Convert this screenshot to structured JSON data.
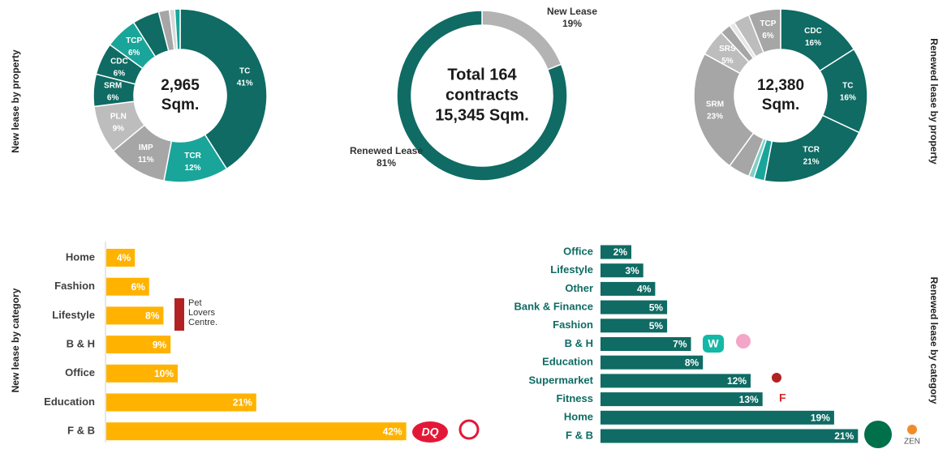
{
  "chart_data": [
    {
      "type": "pie",
      "axis_label": "New lease by property",
      "center_text": [
        "2,965",
        "Sqm."
      ],
      "categories": [
        "TC",
        "TCR",
        "IMP",
        "PLN",
        "SRM",
        "CDC",
        "TCP",
        null,
        null,
        null,
        null
      ],
      "values": [
        41,
        12,
        11,
        9,
        6,
        6,
        6,
        5,
        2,
        1,
        1
      ],
      "value_labels": [
        "41%",
        "12%",
        "11%",
        "9%",
        "6%",
        "6%",
        "6%",
        null,
        null,
        null,
        null
      ],
      "colors": [
        "#0f6b63",
        "#1aa59a",
        "#a6a6a6",
        "#bdbdbd",
        "#0f6b63",
        "#0f6b63",
        "#1aa59a",
        "#0f6b63",
        "#a6a6a6",
        "#d9d9d9",
        "#1aa59a"
      ]
    },
    {
      "type": "pie",
      "center_text": [
        "Total 164",
        "contracts",
        "15,345 Sqm."
      ],
      "categories": [
        "New Lease",
        "Renewed Lease"
      ],
      "values": [
        19,
        81
      ],
      "value_labels": [
        "19%",
        "81%"
      ],
      "colors": [
        "#b3b3b3",
        "#0f6b63"
      ]
    },
    {
      "type": "pie",
      "axis_label": "Renewed lease by property",
      "center_text": [
        "12,380",
        "Sqm."
      ],
      "categories": [
        "CDC",
        "TC",
        "TCR",
        null,
        null,
        null,
        "SRM",
        "SRS",
        null,
        null,
        null,
        "TCP"
      ],
      "values": [
        16,
        16,
        21,
        2,
        1,
        4,
        23,
        5,
        2,
        1,
        3,
        6
      ],
      "value_labels": [
        "16%",
        "16%",
        "21%",
        null,
        null,
        null,
        "23%",
        "5%",
        null,
        null,
        null,
        "6%"
      ],
      "colors": [
        "#0f6b63",
        "#0f6b63",
        "#0f6b63",
        "#1aa59a",
        "#7fd0c8",
        "#a6a6a6",
        "#a6a6a6",
        "#bdbdbd",
        "#a6a6a6",
        "#e6e6e6",
        "#bdbdbd",
        "#a6a6a6"
      ]
    },
    {
      "type": "bar",
      "axis_label": "New lease by category",
      "color": "#ffb300",
      "categories": [
        "Home",
        "Fashion",
        "Lifestyle",
        "B & H",
        "Office",
        "Education",
        "F & B"
      ],
      "values": [
        4,
        6,
        8,
        9,
        10,
        21,
        42
      ],
      "value_labels": [
        "4%",
        "6%",
        "8%",
        "9%",
        "10%",
        "21%",
        "42%"
      ]
    },
    {
      "type": "bar",
      "axis_label": "Renewed lease by category",
      "color": "#0f6b63",
      "categories": [
        "Office",
        "Lifestyle",
        "Other",
        "Bank & Finance",
        "Fashion",
        "B & H",
        "Education",
        "Supermarket",
        "Fitness",
        "Home",
        "F & B"
      ],
      "values": [
        2,
        3,
        4,
        5,
        5,
        7,
        8,
        12,
        13,
        19,
        21
      ],
      "value_labels": [
        "2%",
        "3%",
        "4%",
        "5%",
        "5%",
        "7%",
        "8%",
        "12%",
        "13%",
        "19%",
        "21%"
      ]
    }
  ],
  "logos": {
    "pet": [
      "Pet",
      "Lovers",
      "Centre."
    ],
    "dq": "DQ",
    "w": "W",
    "zen": "ZEN"
  }
}
